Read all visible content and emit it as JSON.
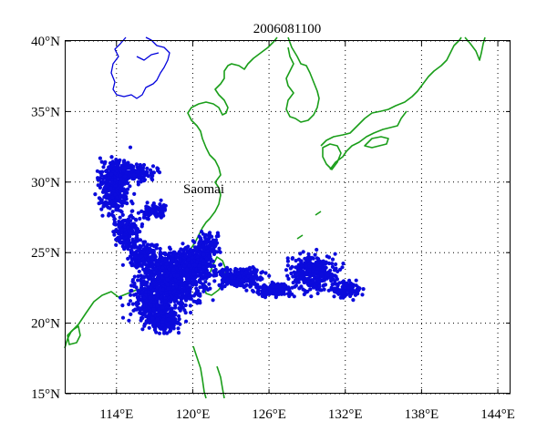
{
  "map": {
    "title": "2006081100",
    "annotation": "Saomai",
    "lon_range": [
      110,
      145
    ],
    "lat_range": [
      15,
      40
    ],
    "lon_ticks": [
      {
        "value": 114,
        "label": "114°E"
      },
      {
        "value": 120,
        "label": "120°E"
      },
      {
        "value": 126,
        "label": "126°E"
      },
      {
        "value": 132,
        "label": "132°E"
      },
      {
        "value": 138,
        "label": "138°E"
      },
      {
        "value": 144,
        "label": "144°E"
      }
    ],
    "lat_ticks": [
      {
        "value": 40,
        "label": "40°N"
      },
      {
        "value": 35,
        "label": "35°N"
      },
      {
        "value": 30,
        "label": "30°N"
      },
      {
        "value": 25,
        "label": "25°N"
      },
      {
        "value": 20,
        "label": "20°N"
      },
      {
        "value": 15,
        "label": "15°N"
      }
    ],
    "grid": "dotted",
    "colors": {
      "coastline": "#1a9e1a",
      "border": "#0000dd",
      "points": "#0b0bdc",
      "frame": "#000000"
    }
  }
}
